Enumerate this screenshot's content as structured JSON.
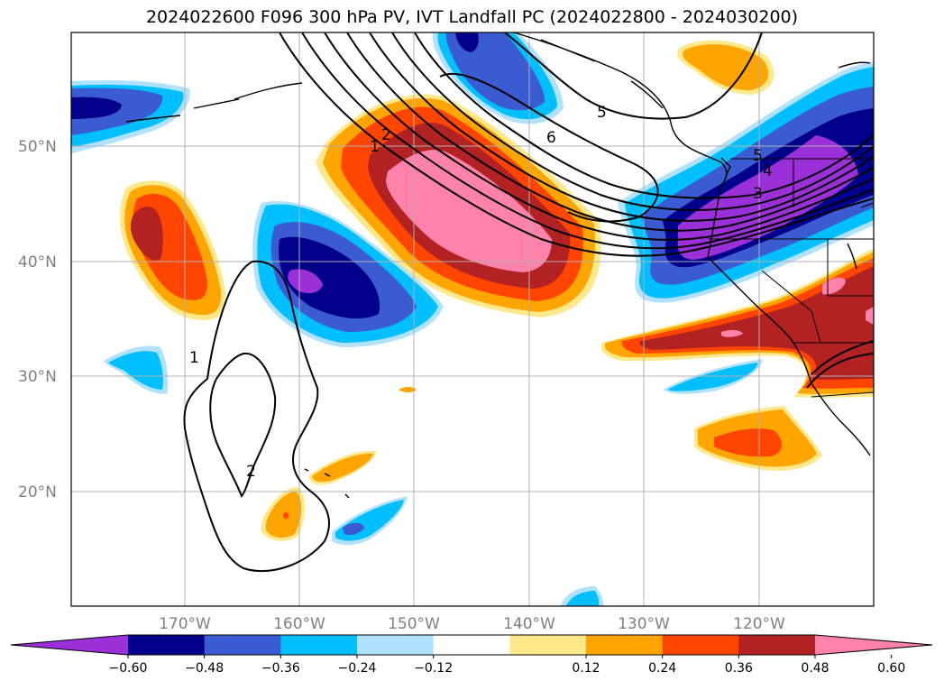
{
  "title": "2024022600 F096 300 hPa PV, IVT Landfall PC (2024022800 - 2024030200)",
  "lat_labels": [
    "50°N",
    "40°N",
    "30°N",
    "20°N"
  ],
  "lon_labels": [
    "170°W",
    "160°W",
    "150°W",
    "140°W",
    "130°W",
    "120°W"
  ],
  "colorbar": {
    "colors": [
      "#9b30d9",
      "#00008b",
      "#3a5bd1",
      "#00bfff",
      "#b0e2ff",
      "#ffffff",
      "#ffe88a",
      "#ffa500",
      "#ff4500",
      "#b22222",
      "#ff82ab"
    ],
    "tick_labels": [
      "−0.60",
      "−0.48",
      "−0.36",
      "−0.24",
      "−0.12",
      "0.12",
      "0.24",
      "0.36",
      "0.48",
      "0.60"
    ]
  },
  "contour_labels": [
    "1",
    "2",
    "1",
    "2",
    "6",
    "5",
    "5",
    "4",
    "3"
  ],
  "colors": {
    "grid": "#b0b0b0",
    "axis_label": "#808080",
    "coast": "#000000"
  }
}
